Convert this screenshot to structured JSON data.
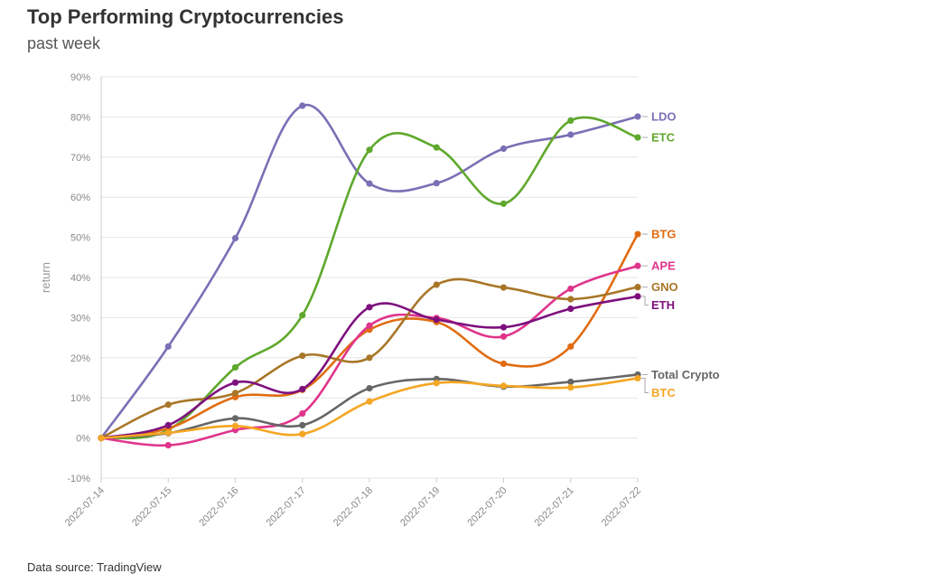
{
  "title": "Top Performing Cryptocurrencies",
  "subtitle": "past week",
  "source": "Data source: TradingView",
  "chart_data": {
    "type": "line",
    "x": [
      "2022-07-14",
      "2022-07-15",
      "2022-07-16",
      "2022-07-17",
      "2022-07-18",
      "2022-07-19",
      "2022-07-20",
      "2022-07-21",
      "2022-07-22"
    ],
    "ylabel": "return",
    "ylim": [
      -10,
      90
    ],
    "yticks": [
      -10,
      0,
      10,
      20,
      30,
      40,
      50,
      60,
      70,
      80,
      90
    ],
    "ytick_labels": [
      "-10%",
      "0%",
      "10%",
      "20%",
      "30%",
      "40%",
      "50%",
      "60%",
      "70%",
      "80%",
      "90%"
    ],
    "grid": true,
    "legend": "end-of-line labels",
    "series": [
      {
        "name": "LDO",
        "color": "#7b6fb5",
        "values": [
          0,
          22.8,
          49.8,
          82.8,
          63.4,
          63.5,
          72.1,
          75.6,
          80.1
        ]
      },
      {
        "name": "ETC",
        "color": "#5fa82c",
        "values": [
          0,
          2.0,
          17.6,
          30.6,
          71.8,
          72.4,
          58.4,
          79.1,
          74.9
        ]
      },
      {
        "name": "BTG",
        "color": "#e06c12",
        "values": [
          0,
          2.4,
          10.2,
          12.0,
          27.0,
          28.9,
          18.5,
          22.8,
          50.8
        ]
      },
      {
        "name": "APE",
        "color": "#e0358c",
        "values": [
          0,
          -1.8,
          2.0,
          6.1,
          28.0,
          29.9,
          25.3,
          37.2,
          42.9
        ]
      },
      {
        "name": "GNO",
        "color": "#a87627",
        "values": [
          0,
          8.3,
          11.2,
          20.5,
          20.0,
          38.2,
          37.5,
          34.6,
          37.6
        ]
      },
      {
        "name": "ETH",
        "color": "#7e107e",
        "values": [
          0,
          3.2,
          13.8,
          12.2,
          32.6,
          29.5,
          27.6,
          32.2,
          35.3
        ]
      },
      {
        "name": "Total Crypto",
        "color": "#666666",
        "values": [
          0,
          1.2,
          4.9,
          3.2,
          12.4,
          14.7,
          12.8,
          14.0,
          15.8
        ]
      },
      {
        "name": "BTC",
        "color": "#f5a623",
        "values": [
          0,
          1.3,
          3.0,
          1.0,
          9.1,
          13.7,
          13.0,
          12.6,
          14.9
        ]
      }
    ]
  }
}
